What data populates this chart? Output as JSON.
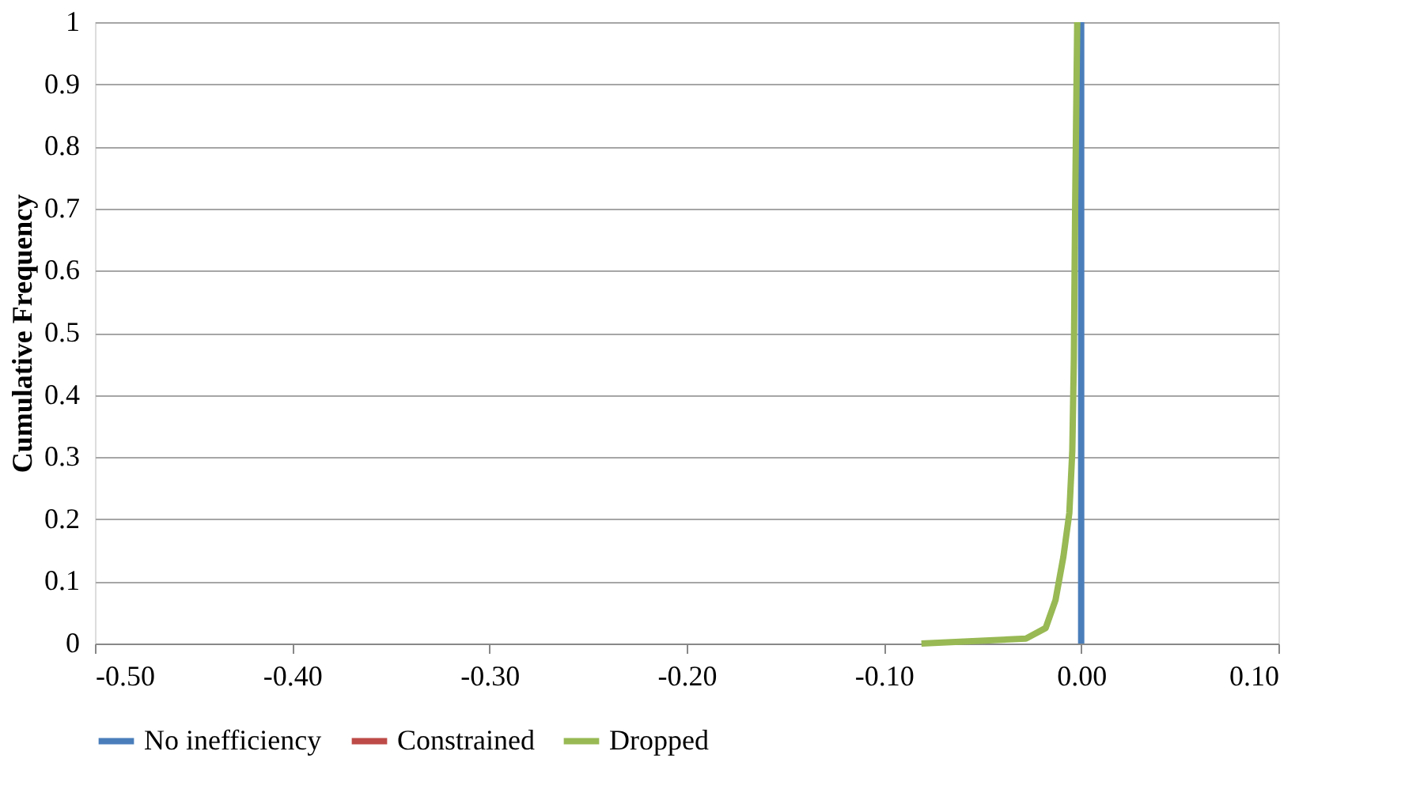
{
  "chart_data": {
    "type": "line",
    "ylabel": "Cumulative Frequency",
    "xlim": [
      -0.5,
      0.1
    ],
    "ylim": [
      0,
      1
    ],
    "xticks": [
      {
        "value": -0.5,
        "label": "-0.50"
      },
      {
        "value": -0.4,
        "label": "-0.40"
      },
      {
        "value": -0.3,
        "label": "-0.30"
      },
      {
        "value": -0.2,
        "label": "-0.20"
      },
      {
        "value": -0.1,
        "label": "-0.10"
      },
      {
        "value": 0,
        "label": "0.00"
      },
      {
        "value": 0.1,
        "label": "0.10"
      }
    ],
    "yticks": [
      0,
      0.1,
      0.2,
      0.3,
      0.4,
      0.5,
      0.6,
      0.7,
      0.8,
      0.9,
      1
    ],
    "grid": "y",
    "legend": "bottom",
    "marker": "none",
    "line_style": "solid",
    "series": [
      {
        "name": "No inefficiency",
        "color": "#4a7ebb",
        "x": [
          0,
          0
        ],
        "values": [
          0,
          1
        ]
      },
      {
        "name": "Constrained",
        "color": "#be4b48"
      },
      {
        "name": "Dropped",
        "color": "#98b954",
        "x": [
          -0.081,
          -0.028,
          -0.018,
          -0.013,
          -0.009,
          -0.006,
          -0.0045,
          -0.0037,
          -0.003,
          -0.002
        ],
        "values": [
          0,
          0.008,
          0.025,
          0.07,
          0.14,
          0.21,
          0.31,
          0.46,
          0.72,
          1
        ]
      }
    ]
  }
}
